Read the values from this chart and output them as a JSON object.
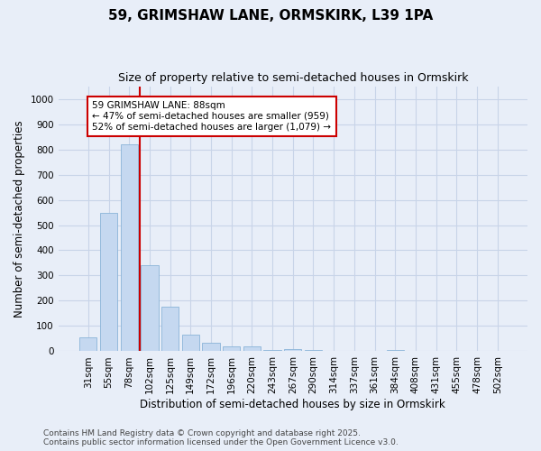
{
  "title_line1": "59, GRIMSHAW LANE, ORMSKIRK, L39 1PA",
  "title_line2": "Size of property relative to semi-detached houses in Ormskirk",
  "xlabel": "Distribution of semi-detached houses by size in Ormskirk",
  "ylabel": "Number of semi-detached properties",
  "categories": [
    "31sqm",
    "55sqm",
    "78sqm",
    "102sqm",
    "125sqm",
    "149sqm",
    "172sqm",
    "196sqm",
    "220sqm",
    "243sqm",
    "267sqm",
    "290sqm",
    "314sqm",
    "337sqm",
    "361sqm",
    "384sqm",
    "408sqm",
    "431sqm",
    "455sqm",
    "478sqm",
    "502sqm"
  ],
  "values": [
    55,
    550,
    820,
    340,
    175,
    65,
    35,
    20,
    20,
    5,
    10,
    5,
    0,
    0,
    0,
    5,
    0,
    0,
    0,
    0,
    0
  ],
  "bar_color": "#c5d8f0",
  "bar_edge_color": "#8ab4d8",
  "grid_color": "#c8d4e8",
  "background_color": "#e8eef8",
  "plot_bg_color": "#e8eef8",
  "annotation_box_color": "#ffffff",
  "annotation_border_color": "#cc0000",
  "vline_color": "#cc0000",
  "vline_x": 2.5,
  "annotation_text_line1": "59 GRIMSHAW LANE: 88sqm",
  "annotation_text_line2": "← 47% of semi-detached houses are smaller (959)",
  "annotation_text_line3": "52% of semi-detached houses are larger (1,079) →",
  "ylim": [
    0,
    1050
  ],
  "yticks": [
    0,
    100,
    200,
    300,
    400,
    500,
    600,
    700,
    800,
    900,
    1000
  ],
  "footer_line1": "Contains HM Land Registry data © Crown copyright and database right 2025.",
  "footer_line2": "Contains public sector information licensed under the Open Government Licence v3.0.",
  "title_fontsize": 11,
  "subtitle_fontsize": 9,
  "tick_fontsize": 7.5,
  "label_fontsize": 8.5,
  "annotation_fontsize": 7.5,
  "footer_fontsize": 6.5
}
